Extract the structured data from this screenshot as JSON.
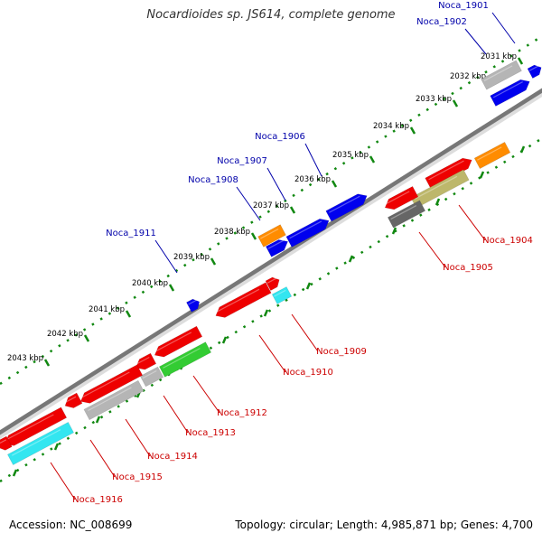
{
  "title": "Nocardioides sp. JS614, complete genome",
  "footer": {
    "accession": "Accession: NC_008699",
    "summary": "Topology: circular; Length: 4,985,871 bp; Genes: 4,700"
  },
  "colors": {
    "backbone": "#777777",
    "tick": "#118811",
    "red": "#ee0000",
    "blue": "#0000ee",
    "orange": "#ff8c00",
    "gray": "#b5b5b5",
    "darkgray": "#666666",
    "olive": "#bdb76b",
    "green": "#33cc33",
    "cyan": "#33e6f0",
    "label_top": "#0000aa",
    "label_bottom": "#cc0000",
    "kbp_label": "#000000"
  },
  "kbp_labels": [
    "2031 kbp",
    "2032 kbp",
    "2033 kbp",
    "2034 kbp",
    "2035 kbp",
    "2036 kbp",
    "2037 kbp",
    "2038 kbp",
    "2039 kbp",
    "2040 kbp",
    "2041 kbp",
    "2042 kbp",
    "2043 kbp"
  ],
  "genes": [
    {
      "id": "noca-1901",
      "label": "Noca_1901",
      "color": "blue",
      "strand": "plus"
    },
    {
      "id": "noca-1902",
      "label": "Noca_1902",
      "color": "blue",
      "strand": "plus"
    },
    {
      "id": "noca-1903",
      "label": "",
      "color": "gray",
      "strand": "plus"
    },
    {
      "id": "noca-1904",
      "label": "Noca_1904",
      "color": "orange",
      "strand": "minus"
    },
    {
      "id": "noca-1905",
      "label": "Noca_1905",
      "color": "darkgray",
      "strand": "minus"
    },
    {
      "id": "noca-1906",
      "label": "Noca_1906",
      "color": "blue",
      "strand": "plus"
    },
    {
      "id": "noca-1907",
      "label": "Noca_1907",
      "color": "blue",
      "strand": "plus"
    },
    {
      "id": "noca-1908",
      "label": "Noca_1908",
      "color": "orange",
      "strand": "plus"
    },
    {
      "id": "noca-1909",
      "label": "Noca_1909",
      "color": "cyan",
      "strand": "minus"
    },
    {
      "id": "noca-1910",
      "label": "Noca_1910",
      "color": "red",
      "strand": "minus"
    },
    {
      "id": "noca-1911",
      "label": "Noca_1911",
      "color": "blue",
      "strand": "plus"
    },
    {
      "id": "noca-1912",
      "label": "Noca_1912",
      "color": "green",
      "strand": "minus"
    },
    {
      "id": "noca-1913",
      "label": "Noca_1913",
      "color": "gray",
      "strand": "minus"
    },
    {
      "id": "noca-1914",
      "label": "Noca_1914",
      "color": "gray",
      "strand": "minus"
    },
    {
      "id": "noca-1915",
      "label": "Noca_1915",
      "color": "red",
      "strand": "minus"
    },
    {
      "id": "noca-1916",
      "label": "Noca_1916",
      "color": "cyan",
      "strand": "minus"
    }
  ]
}
